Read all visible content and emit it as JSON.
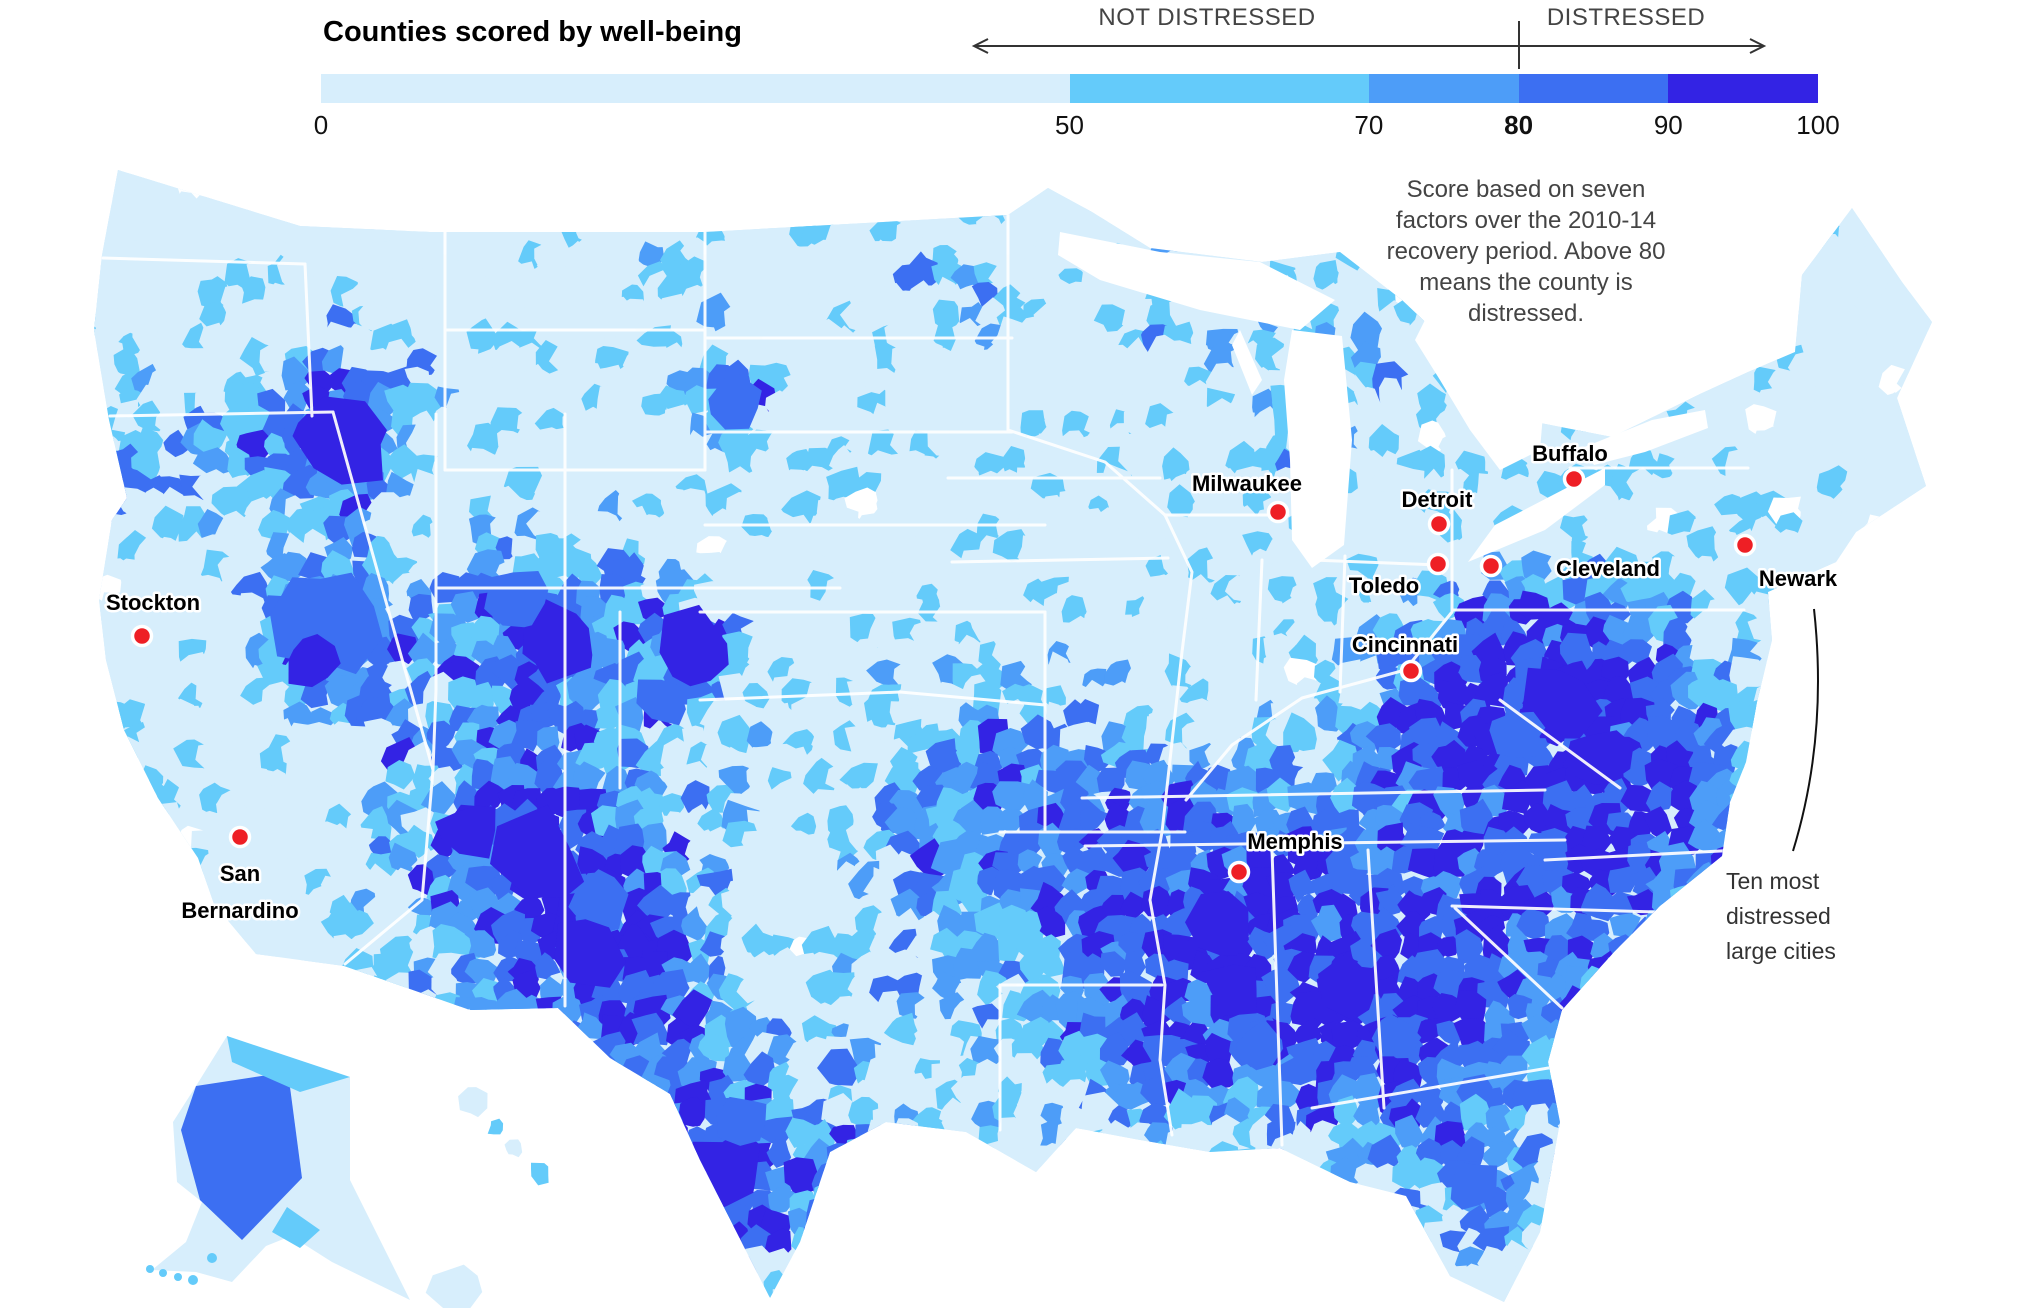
{
  "header": {
    "title": "Counties scored by well-being",
    "legend": {
      "not_distressed_label": "NOT DISTRESSED",
      "distressed_label": "DISTRESSED",
      "threshold_value": 80,
      "ticks": [
        0,
        50,
        70,
        80,
        90,
        100
      ],
      "stops": [
        {
          "from": 0,
          "to": 50,
          "color": "#d7eefc"
        },
        {
          "from": 50,
          "to": 70,
          "color": "#64cbfa"
        },
        {
          "from": 70,
          "to": 80,
          "color": "#4d9df8"
        },
        {
          "from": 80,
          "to": 90,
          "color": "#3c6ff2"
        },
        {
          "from": 90,
          "to": 100,
          "color": "#3323e4"
        }
      ]
    }
  },
  "annotation": {
    "text": "Score based on seven\nfactors over the 2010-14\nrecovery period. Above 80\nmeans the county is\ndistressed."
  },
  "callout": {
    "text": "Ten most\ndistressed\nlarge cities"
  },
  "map": {
    "dot_color": "#ee1f25",
    "cities": [
      {
        "name": "Stockton",
        "dot": [
          142,
          636
        ],
        "label": [
          153,
          610
        ],
        "lines": [
          "Stockton"
        ]
      },
      {
        "name": "San Bernardino",
        "dot": [
          240,
          837
        ],
        "label": [
          240,
          881
        ],
        "lines": [
          "San",
          "Bernardino"
        ]
      },
      {
        "name": "Milwaukee",
        "dot": [
          1278,
          512
        ],
        "label": [
          1247,
          491
        ],
        "lines": [
          "Milwaukee"
        ]
      },
      {
        "name": "Detroit",
        "dot": [
          1439,
          524
        ],
        "label": [
          1437,
          507
        ],
        "lines": [
          "Detroit"
        ]
      },
      {
        "name": "Toledo",
        "dot": [
          1438,
          564
        ],
        "label": [
          1384,
          593
        ],
        "lines": [
          "Toledo"
        ]
      },
      {
        "name": "Cleveland",
        "dot": [
          1491,
          566
        ],
        "label": [
          1608,
          576
        ],
        "lines": [
          "Cleveland"
        ]
      },
      {
        "name": "Buffalo",
        "dot": [
          1574,
          479
        ],
        "label": [
          1570,
          461
        ],
        "lines": [
          "Buffalo"
        ]
      },
      {
        "name": "Newark",
        "dot": [
          1745,
          545
        ],
        "label": [
          1798,
          586
        ],
        "lines": [
          "Newark"
        ]
      },
      {
        "name": "Cincinnati",
        "dot": [
          1411,
          671
        ],
        "label": [
          1405,
          652
        ],
        "lines": [
          "Cincinnati"
        ]
      },
      {
        "name": "Memphis",
        "dot": [
          1239,
          872
        ],
        "label": [
          1295,
          849
        ],
        "lines": [
          "Memphis"
        ]
      }
    ]
  },
  "chart_data": {
    "type": "choropleth_map",
    "title": "Counties scored by well-being",
    "scale": {
      "domain": [
        0,
        100
      ],
      "ticks": [
        0,
        50,
        70,
        80,
        90,
        100
      ],
      "threshold": 80,
      "zones": [
        {
          "range": [
            0,
            80
          ],
          "label": "NOT DISTRESSED"
        },
        {
          "range": [
            80,
            100
          ],
          "label": "DISTRESSED"
        }
      ],
      "stops": [
        {
          "from": 0,
          "to": 50,
          "color": "#d7eefc"
        },
        {
          "from": 50,
          "to": 70,
          "color": "#64cbfa"
        },
        {
          "from": 70,
          "to": 80,
          "color": "#4d9df8"
        },
        {
          "from": 80,
          "to": 90,
          "color": "#3c6ff2"
        },
        {
          "from": 90,
          "to": 100,
          "color": "#3323e4"
        }
      ]
    },
    "note": "Score based on seven factors over the 2010-14 recovery period. Above 80 means the county is distressed.",
    "annotated_points": {
      "group_label": "Ten most distressed large cities",
      "cities": [
        "Stockton",
        "San Bernardino",
        "Milwaukee",
        "Detroit",
        "Toledo",
        "Cleveland",
        "Buffalo",
        "Newark",
        "Cincinnati",
        "Memphis"
      ]
    }
  }
}
